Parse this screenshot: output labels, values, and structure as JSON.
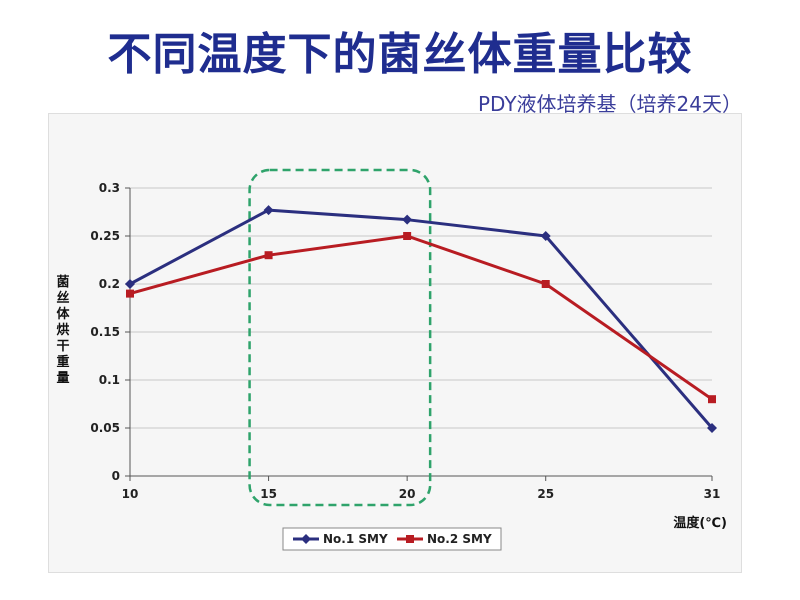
{
  "page": {
    "title": "不同温度下的菌丝体重量比较",
    "subtitle": "PDY液体培养基（培养24天）"
  },
  "chart_data": {
    "type": "line",
    "x": [
      10,
      15,
      20,
      25,
      31
    ],
    "x_tick_labels": [
      "10",
      "15",
      "20",
      "25",
      "31"
    ],
    "ylim": [
      0,
      0.3
    ],
    "y_ticks": [
      0,
      0.05,
      0.1,
      0.15,
      0.2,
      0.25,
      0.3
    ],
    "y_tick_labels": [
      "0",
      "0.05",
      "0.1",
      "0.15",
      "0.2",
      "0.25",
      "0.3"
    ],
    "xlabel": "温度(℃)",
    "ylabel": "菌丝体烘干重量",
    "grid": true,
    "legend_position": "bottom-center",
    "series": [
      {
        "name": "No.1 SMY",
        "color": "#2b2f7f",
        "marker": "diamond",
        "values": [
          0.2,
          0.277,
          0.267,
          0.25,
          0.05
        ]
      },
      {
        "name": "No.2 SMY",
        "color": "#b81c22",
        "marker": "square",
        "values": [
          0.19,
          0.23,
          0.25,
          0.2,
          0.08
        ]
      }
    ],
    "highlight": {
      "x_range": [
        15,
        20
      ],
      "color": "#2fa36b",
      "style": "dashed"
    }
  }
}
